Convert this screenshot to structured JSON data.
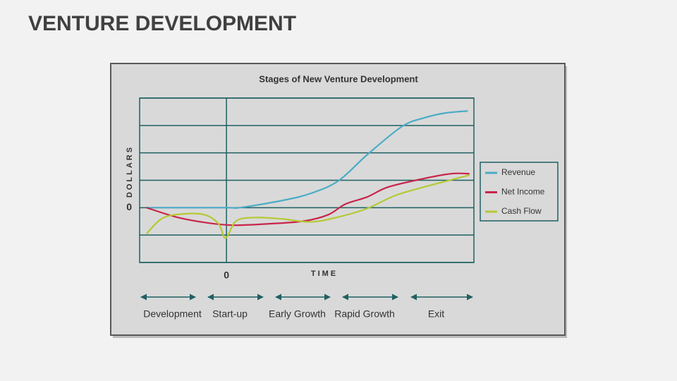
{
  "header": {
    "title": "VENTURE DEVELOPMENT"
  },
  "chart_data": {
    "type": "line",
    "title": "Stages of New Venture Development",
    "y_label": "DOLLARS",
    "x_label": "TIME",
    "xlim": [
      -1,
      2.85
    ],
    "ylim": [
      -2,
      4
    ],
    "xticks": [
      0
    ],
    "yticks": [
      0
    ],
    "grid": true,
    "series": [
      {
        "name": "Revenue",
        "color": "#4bacc6",
        "x": [
          -0.92,
          0,
          0.15,
          0.64,
          0.97,
          1.29,
          1.62,
          2.02,
          2.27,
          2.51,
          2.78
        ],
        "values": [
          0,
          0,
          0,
          0.26,
          0.52,
          0.98,
          1.93,
          2.96,
          3.27,
          3.45,
          3.53
        ]
      },
      {
        "name": "Net Income",
        "color": "#c8254a",
        "x": [
          -0.92,
          -0.58,
          -0.25,
          0.07,
          0.48,
          0.89,
          1.17,
          1.37,
          1.62,
          1.86,
          2.27,
          2.59,
          2.8
        ],
        "values": [
          0,
          -0.34,
          -0.54,
          -0.64,
          -0.59,
          -0.49,
          -0.26,
          0.13,
          0.39,
          0.75,
          1.06,
          1.24,
          1.24
        ]
      },
      {
        "name": "Cash Flow",
        "color": "#b5c934",
        "x": [
          -0.92,
          -0.74,
          -0.5,
          -0.25,
          -0.09,
          -0.01,
          0.11,
          0.32,
          0.64,
          0.97,
          1.29,
          1.62,
          1.94,
          2.27,
          2.51,
          2.8
        ],
        "values": [
          -0.95,
          -0.39,
          -0.23,
          -0.26,
          -0.59,
          -1.11,
          -0.49,
          -0.36,
          -0.41,
          -0.52,
          -0.34,
          -0.03,
          0.44,
          0.75,
          0.95,
          1.19
        ]
      }
    ],
    "stages": [
      "Development",
      "Start-up",
      "Early Growth",
      "Rapid Growth",
      "Exit"
    ]
  }
}
